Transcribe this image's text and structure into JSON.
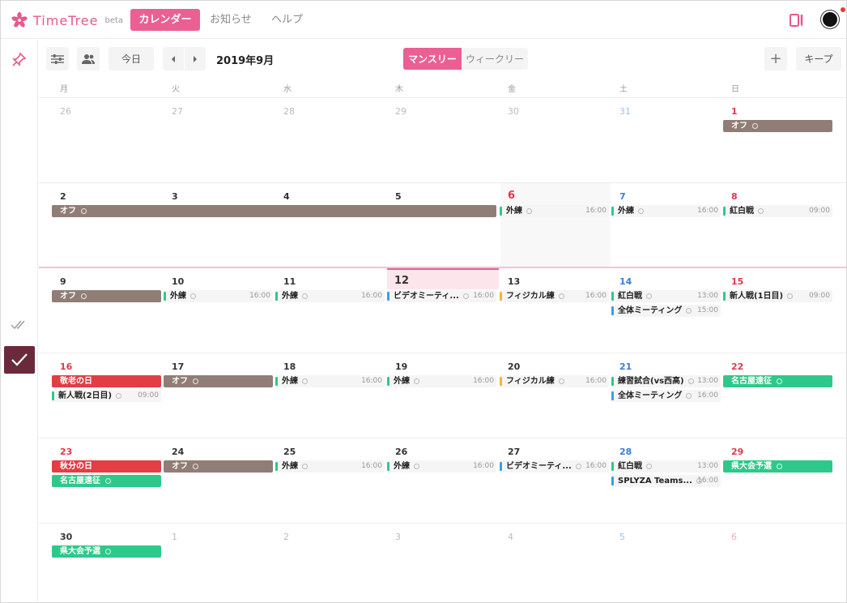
{
  "app": {
    "brand": "TimeTree",
    "beta": "beta",
    "nav": {
      "calendar": "カレンダー",
      "news": "お知らせ",
      "help": "ヘルプ"
    }
  },
  "toolbar": {
    "today": "今日",
    "month": "2019年9月",
    "monthly": "マンスリー",
    "weekly": "ウィークリー",
    "add": "+",
    "keep": "キープ"
  },
  "weekdays": [
    "月",
    "火",
    "水",
    "木",
    "金",
    "土",
    "日"
  ],
  "colors": {
    "accent": "#ec5f92",
    "off": "#907e76",
    "holiday": "#e23e44",
    "trip": "#2ec98a"
  },
  "weeks": [
    {
      "days": [
        {
          "n": "26",
          "dim": true
        },
        {
          "n": "27",
          "dim": true
        },
        {
          "n": "28",
          "dim": true
        },
        {
          "n": "29",
          "dim": true
        },
        {
          "n": "30",
          "dim": true
        },
        {
          "n": "31",
          "dim": true
        },
        {
          "n": "1"
        }
      ]
    },
    {
      "days": [
        {
          "n": "2"
        },
        {
          "n": "3"
        },
        {
          "n": "4"
        },
        {
          "n": "5"
        },
        {
          "n": "6",
          "today_like": true
        },
        {
          "n": "7"
        },
        {
          "n": "8"
        }
      ]
    },
    {
      "days": [
        {
          "n": "9"
        },
        {
          "n": "10"
        },
        {
          "n": "11"
        },
        {
          "n": "12",
          "today": true
        },
        {
          "n": "13"
        },
        {
          "n": "14"
        },
        {
          "n": "15"
        }
      ]
    },
    {
      "days": [
        {
          "n": "16"
        },
        {
          "n": "17"
        },
        {
          "n": "18"
        },
        {
          "n": "19"
        },
        {
          "n": "20"
        },
        {
          "n": "21"
        },
        {
          "n": "22"
        }
      ]
    },
    {
      "days": [
        {
          "n": "23"
        },
        {
          "n": "24"
        },
        {
          "n": "25"
        },
        {
          "n": "26"
        },
        {
          "n": "27"
        },
        {
          "n": "28"
        },
        {
          "n": "29"
        }
      ]
    },
    {
      "days": [
        {
          "n": "30"
        },
        {
          "n": "1",
          "dim": true
        },
        {
          "n": "2",
          "dim": true
        },
        {
          "n": "3",
          "dim": true
        },
        {
          "n": "4",
          "dim": true
        },
        {
          "n": "5",
          "dim": true
        },
        {
          "n": "6",
          "dim": true
        }
      ]
    }
  ],
  "events": [
    {
      "week": 0,
      "col": 6,
      "span": 1,
      "row": 0,
      "kind": "block",
      "color": "off",
      "title": "オフ"
    },
    {
      "week": 1,
      "col": 0,
      "span": 4,
      "row": 0,
      "kind": "block",
      "color": "off",
      "title": "オフ"
    },
    {
      "week": 1,
      "col": 4,
      "span": 1,
      "row": 0,
      "kind": "line",
      "bar": "#2ec98a",
      "title": "外練",
      "time": "16:00"
    },
    {
      "week": 1,
      "col": 5,
      "span": 1,
      "row": 0,
      "kind": "line",
      "bar": "#2ec98a",
      "title": "外練",
      "time": "16:00"
    },
    {
      "week": 1,
      "col": 6,
      "span": 1,
      "row": 0,
      "kind": "line",
      "bar": "#2ec98a",
      "title": "紅白戦",
      "time": "09:00"
    },
    {
      "week": 2,
      "col": 0,
      "span": 1,
      "row": 0,
      "kind": "block",
      "color": "off",
      "title": "オフ"
    },
    {
      "week": 2,
      "col": 1,
      "span": 1,
      "row": 0,
      "kind": "line",
      "bar": "#2ec98a",
      "title": "外練",
      "time": "16:00"
    },
    {
      "week": 2,
      "col": 2,
      "span": 1,
      "row": 0,
      "kind": "line",
      "bar": "#2ec98a",
      "title": "外練",
      "time": "16:00"
    },
    {
      "week": 2,
      "col": 3,
      "span": 1,
      "row": 0,
      "kind": "line",
      "bar": "#3aa0e0",
      "title": "ビデオミーティ...",
      "time": "16:00"
    },
    {
      "week": 2,
      "col": 4,
      "span": 1,
      "row": 0,
      "kind": "line",
      "bar": "#f2b733",
      "title": "フィジカル練",
      "time": "16:00"
    },
    {
      "week": 2,
      "col": 5,
      "span": 1,
      "row": 0,
      "kind": "line",
      "bar": "#2ec98a",
      "title": "紅白戦",
      "time": "13:00"
    },
    {
      "week": 2,
      "col": 5,
      "span": 1,
      "row": 1,
      "kind": "line",
      "bar": "#3aa0e0",
      "title": "全体ミーティング",
      "time": "15:00"
    },
    {
      "week": 2,
      "col": 6,
      "span": 1,
      "row": 0,
      "kind": "line",
      "bar": "#2ec98a",
      "title": "新人戦(1日目)",
      "time": "09:00"
    },
    {
      "week": 3,
      "col": 0,
      "span": 1,
      "row": 0,
      "kind": "block",
      "color": "holiday",
      "title": "敬老の日",
      "nomark": true
    },
    {
      "week": 3,
      "col": 0,
      "span": 1,
      "row": 1,
      "kind": "line",
      "bar": "#2ec98a",
      "title": "新人戦(2日目)",
      "time": "09:00"
    },
    {
      "week": 3,
      "col": 1,
      "span": 1,
      "row": 0,
      "kind": "block",
      "color": "off",
      "title": "オフ"
    },
    {
      "week": 3,
      "col": 2,
      "span": 1,
      "row": 0,
      "kind": "line",
      "bar": "#2ec98a",
      "title": "外練",
      "time": "16:00"
    },
    {
      "week": 3,
      "col": 3,
      "span": 1,
      "row": 0,
      "kind": "line",
      "bar": "#2ec98a",
      "title": "外練",
      "time": "16:00"
    },
    {
      "week": 3,
      "col": 4,
      "span": 1,
      "row": 0,
      "kind": "line",
      "bar": "#f2b733",
      "title": "フィジカル練",
      "time": "16:00"
    },
    {
      "week": 3,
      "col": 5,
      "span": 1,
      "row": 0,
      "kind": "line",
      "bar": "#2ec98a",
      "title": "練習試合(vs西高)",
      "time": "13:00"
    },
    {
      "week": 3,
      "col": 5,
      "span": 1,
      "row": 1,
      "kind": "line",
      "bar": "#3aa0e0",
      "title": "全体ミーティング",
      "time": "16:00"
    },
    {
      "week": 3,
      "col": 6,
      "span": 1,
      "row": 0,
      "kind": "block",
      "color": "trip",
      "title": "名古屋遠征"
    },
    {
      "week": 4,
      "col": 0,
      "span": 1,
      "row": 0,
      "kind": "block",
      "color": "holiday",
      "title": "秋分の日",
      "nomark": true
    },
    {
      "week": 4,
      "col": 0,
      "span": 1,
      "row": 1,
      "kind": "block",
      "color": "trip",
      "title": "名古屋遠征"
    },
    {
      "week": 4,
      "col": 1,
      "span": 1,
      "row": 0,
      "kind": "block",
      "color": "off",
      "title": "オフ"
    },
    {
      "week": 4,
      "col": 2,
      "span": 1,
      "row": 0,
      "kind": "line",
      "bar": "#2ec98a",
      "title": "外練",
      "time": "16:00"
    },
    {
      "week": 4,
      "col": 3,
      "span": 1,
      "row": 0,
      "kind": "line",
      "bar": "#2ec98a",
      "title": "外練",
      "time": "16:00"
    },
    {
      "week": 4,
      "col": 4,
      "span": 1,
      "row": 0,
      "kind": "line",
      "bar": "#3aa0e0",
      "title": "ビデオミーティ...",
      "time": "16:00"
    },
    {
      "week": 4,
      "col": 5,
      "span": 1,
      "row": 0,
      "kind": "line",
      "bar": "#2ec98a",
      "title": "紅白戦",
      "time": "13:00"
    },
    {
      "week": 4,
      "col": 5,
      "span": 1,
      "row": 1,
      "kind": "line",
      "bar": "#3aa0e0",
      "title": "SPLYZA Teams...",
      "time": "16:00"
    },
    {
      "week": 4,
      "col": 6,
      "span": 1,
      "row": 0,
      "kind": "block",
      "color": "trip",
      "title": "県大会予選"
    },
    {
      "week": 5,
      "col": 0,
      "span": 1,
      "row": 0,
      "kind": "block",
      "color": "trip",
      "title": "県大会予選"
    }
  ]
}
